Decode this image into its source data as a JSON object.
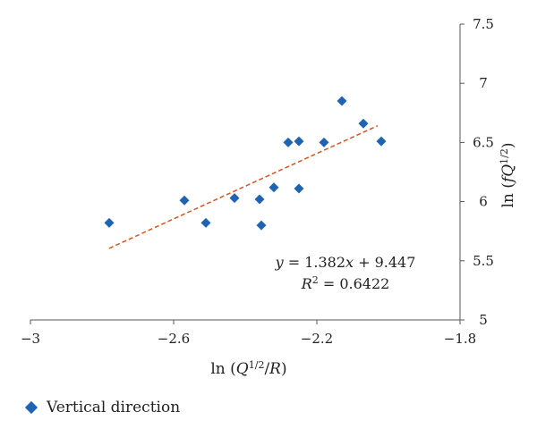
{
  "chart_data": {
    "type": "scatter",
    "xlabel": "ln (Q^{1/2}/R)",
    "ylabel": "ln (fQ^{1/2})",
    "xlim": [
      -3,
      -1.8
    ],
    "ylim": [
      5,
      7.5
    ],
    "x_ticks": [
      "−3",
      "−2.6",
      "−2.2",
      "−1.8"
    ],
    "y_ticks": [
      "5",
      "5.5",
      "6",
      "6.5",
      "7",
      "7.5"
    ],
    "series": [
      {
        "name": "Vertical direction",
        "color": "#1f63b3",
        "marker": "diamond",
        "points": [
          [
            -2.78,
            5.82
          ],
          [
            -2.57,
            6.01
          ],
          [
            -2.51,
            5.82
          ],
          [
            -2.43,
            6.03
          ],
          [
            -2.36,
            6.02
          ],
          [
            -2.355,
            5.8
          ],
          [
            -2.32,
            6.12
          ],
          [
            -2.28,
            6.5
          ],
          [
            -2.25,
            6.51
          ],
          [
            -2.25,
            6.11
          ],
          [
            -2.18,
            6.5
          ],
          [
            -2.13,
            6.85
          ],
          [
            -2.07,
            6.66
          ],
          [
            -2.02,
            6.51
          ]
        ]
      }
    ],
    "trendline": {
      "color": "#d9531e",
      "style": "dashed",
      "slope": 1.382,
      "intercept": 9.447,
      "x_range": [
        -2.78,
        -2.03
      ]
    },
    "annotations": {
      "equation": "y = 1.382x + 9.447",
      "r_squared": "R² = 0.6422"
    },
    "legend_placement": "bottom-left",
    "grid": false
  }
}
